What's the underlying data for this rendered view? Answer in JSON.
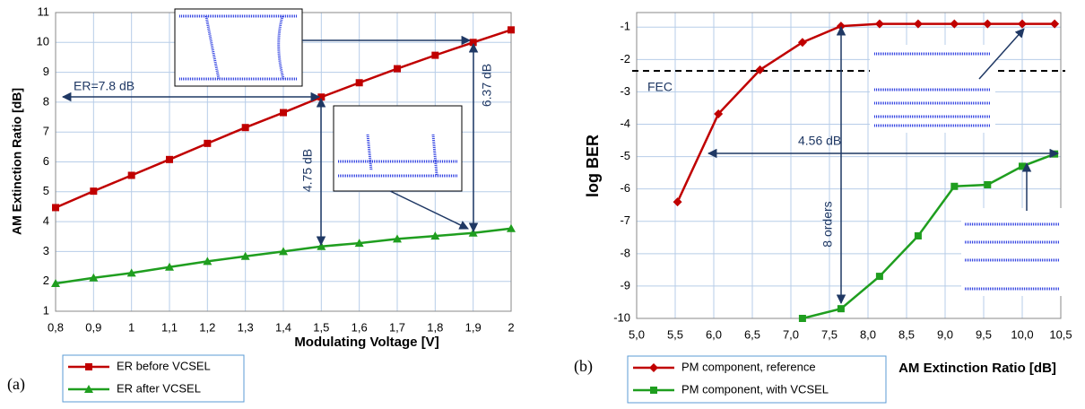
{
  "chart_data": [
    {
      "type": "line",
      "panel_label": "(a)",
      "xlabel": "Modulating Voltage [V]",
      "ylabel": "AM Extinction Ratio [dB]",
      "x": [
        0.8,
        0.9,
        1.0,
        1.1,
        1.2,
        1.3,
        1.4,
        1.5,
        1.6,
        1.7,
        1.8,
        1.9,
        2.0
      ],
      "xlim": [
        0.8,
        2.0
      ],
      "xticks": [
        {
          "value": 0.8,
          "label": "0,8"
        },
        {
          "value": 0.9,
          "label": "0,9"
        },
        1,
        {
          "value": 1.1,
          "label": "1,1"
        },
        {
          "value": 1.2,
          "label": "1,2"
        },
        {
          "value": 1.3,
          "label": "1,3"
        },
        {
          "value": 1.4,
          "label": "1,4"
        },
        {
          "value": 1.5,
          "label": "1,5"
        },
        {
          "value": 1.6,
          "label": "1,6"
        },
        {
          "value": 1.7,
          "label": "1,7"
        },
        {
          "value": 1.8,
          "label": "1,8"
        },
        {
          "value": 1.9,
          "label": "1,9"
        },
        2
      ],
      "ylim": [
        1,
        11
      ],
      "yticks": [
        1,
        2,
        3,
        4,
        5,
        6,
        7,
        8,
        9,
        10,
        11
      ],
      "grid": true,
      "series": [
        {
          "name": "ER before VCSEL",
          "color": "#c00000",
          "marker": "square",
          "values": [
            4.47,
            5.02,
            5.55,
            6.08,
            6.62,
            7.15,
            7.65,
            8.17,
            8.65,
            9.12,
            9.57,
            10.0,
            10.42
          ]
        },
        {
          "name": "ER after VCSEL",
          "color": "#1f9e1f",
          "marker": "triangle",
          "values": [
            1.93,
            2.12,
            2.28,
            2.48,
            2.67,
            2.84,
            3.0,
            3.17,
            3.28,
            3.42,
            3.52,
            3.62,
            3.77
          ]
        }
      ],
      "annotations": [
        "ER=7.8 dB",
        "4.75 dB",
        "6.37 dB"
      ]
    },
    {
      "type": "line",
      "panel_label": "(b)",
      "xlabel": "AM Extinction Ratio [dB]",
      "ylabel": "log BER",
      "xlim": [
        5.0,
        10.5
      ],
      "xticks": [
        {
          "value": 5.0,
          "label": "5,0"
        },
        {
          "value": 5.5,
          "label": "5,5"
        },
        {
          "value": 6.0,
          "label": "6,0"
        },
        {
          "value": 6.5,
          "label": "6,5"
        },
        {
          "value": 7.0,
          "label": "7,0"
        },
        {
          "value": 7.5,
          "label": "7,5"
        },
        {
          "value": 8.0,
          "label": "8,0"
        },
        {
          "value": 8.5,
          "label": "8,5"
        },
        {
          "value": 9.0,
          "label": "9,0"
        },
        {
          "value": 9.5,
          "label": "9,5"
        },
        {
          "value": 10.0,
          "label": "10,0"
        },
        {
          "value": 10.5,
          "label": "10,5"
        }
      ],
      "ylim": [
        -10,
        -0.55
      ],
      "yticks": [
        -10,
        -9,
        -8,
        -7,
        -6,
        -5,
        -4,
        -3,
        -2,
        -1
      ],
      "grid": true,
      "series": [
        {
          "name": "PM component, reference",
          "color": "#c00000",
          "marker": "diamond",
          "x": [
            5.53,
            6.06,
            6.6,
            7.15,
            7.65,
            8.15,
            8.65,
            9.12,
            9.55,
            10.0,
            10.42
          ],
          "values": [
            -6.4,
            -3.68,
            -2.32,
            -1.47,
            -0.97,
            -0.9,
            -0.9,
            -0.9,
            -0.9,
            -0.9,
            -0.9
          ]
        },
        {
          "name": "PM component, with VCSEL",
          "color": "#1f9e1f",
          "marker": "square",
          "x": [
            7.15,
            7.65,
            8.15,
            8.65,
            9.12,
            9.55,
            10.0,
            10.42
          ],
          "values": [
            -10,
            -9.7,
            -8.7,
            -7.45,
            -5.92,
            -5.87,
            -5.3,
            -4.92
          ]
        }
      ],
      "fec_level": -2.35,
      "annotations": [
        "FEC",
        "4.56 dB",
        "8 orders"
      ]
    }
  ]
}
